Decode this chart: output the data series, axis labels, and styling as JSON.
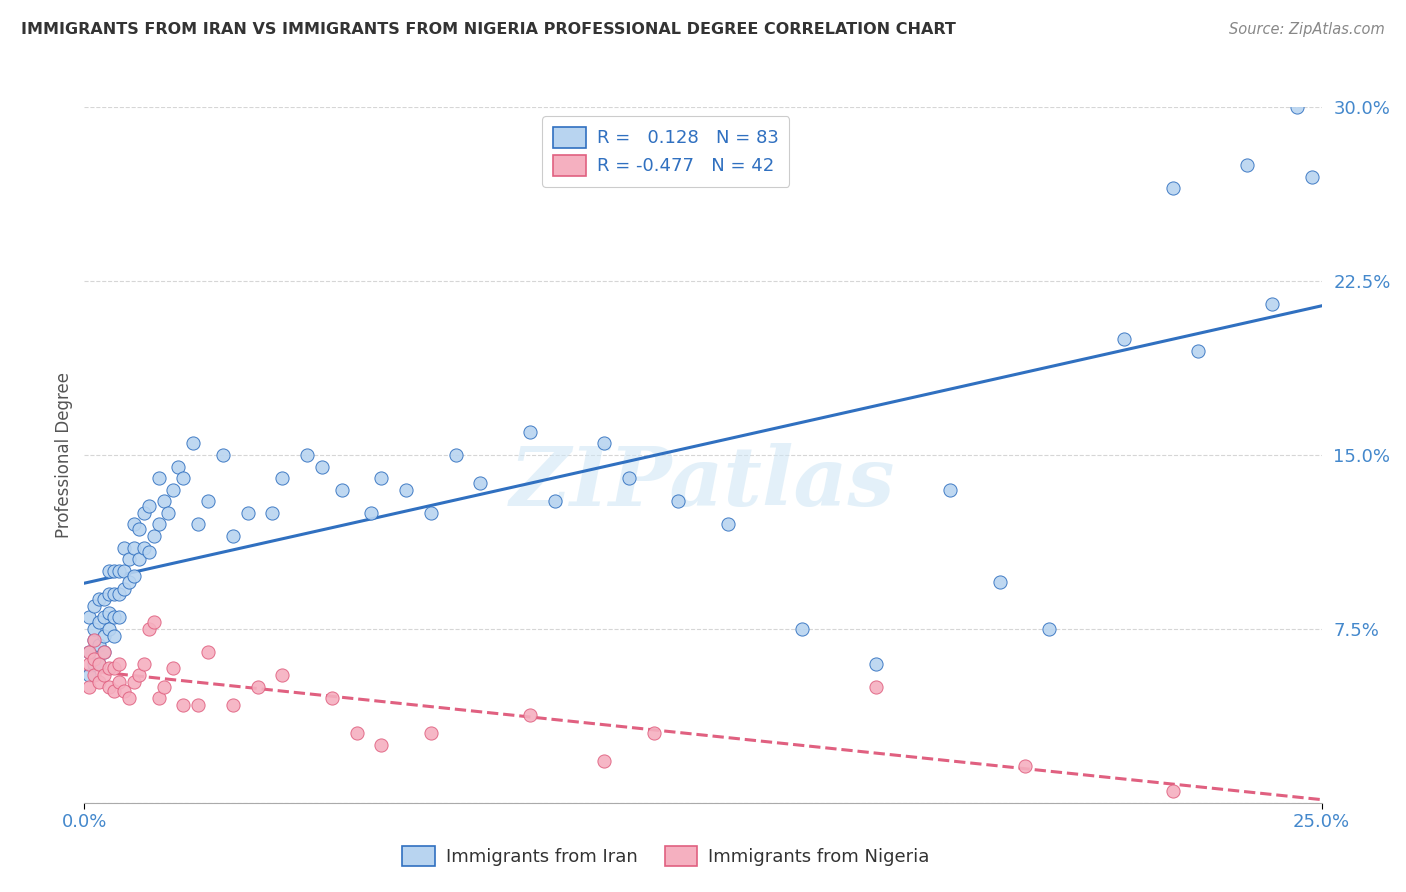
{
  "title": "IMMIGRANTS FROM IRAN VS IMMIGRANTS FROM NIGERIA PROFESSIONAL DEGREE CORRELATION CHART",
  "source": "Source: ZipAtlas.com",
  "xlabel_iran": "Immigrants from Iran",
  "xlabel_nigeria": "Immigrants from Nigeria",
  "ylabel": "Professional Degree",
  "iran_R": 0.128,
  "iran_N": 83,
  "nigeria_R": -0.477,
  "nigeria_N": 42,
  "xmin": 0.0,
  "xmax": 0.25,
  "ymin": 0.0,
  "ymax": 0.3,
  "yticks": [
    0.0,
    0.075,
    0.15,
    0.225,
    0.3
  ],
  "ytick_labels": [
    "",
    "7.5%",
    "15.0%",
    "22.5%",
    "30.0%"
  ],
  "xtick_labels": [
    "0.0%",
    "25.0%"
  ],
  "iran_color": "#b8d4f0",
  "nigeria_color": "#f5b0c0",
  "iran_line_color": "#3070c0",
  "nigeria_line_color": "#e06080",
  "iran_x": [
    0.001,
    0.001,
    0.001,
    0.002,
    0.002,
    0.002,
    0.002,
    0.003,
    0.003,
    0.003,
    0.003,
    0.004,
    0.004,
    0.004,
    0.004,
    0.005,
    0.005,
    0.005,
    0.005,
    0.006,
    0.006,
    0.006,
    0.006,
    0.007,
    0.007,
    0.007,
    0.008,
    0.008,
    0.008,
    0.009,
    0.009,
    0.01,
    0.01,
    0.01,
    0.011,
    0.011,
    0.012,
    0.012,
    0.013,
    0.013,
    0.014,
    0.015,
    0.015,
    0.016,
    0.017,
    0.018,
    0.019,
    0.02,
    0.022,
    0.023,
    0.025,
    0.028,
    0.03,
    0.033,
    0.038,
    0.04,
    0.045,
    0.048,
    0.052,
    0.058,
    0.06,
    0.065,
    0.07,
    0.075,
    0.08,
    0.09,
    0.095,
    0.105,
    0.11,
    0.12,
    0.13,
    0.145,
    0.16,
    0.175,
    0.185,
    0.195,
    0.21,
    0.22,
    0.225,
    0.235,
    0.24,
    0.245,
    0.248
  ],
  "iran_y": [
    0.055,
    0.065,
    0.08,
    0.06,
    0.07,
    0.075,
    0.085,
    0.06,
    0.068,
    0.078,
    0.088,
    0.065,
    0.072,
    0.08,
    0.088,
    0.075,
    0.082,
    0.09,
    0.1,
    0.072,
    0.08,
    0.09,
    0.1,
    0.08,
    0.09,
    0.1,
    0.11,
    0.092,
    0.1,
    0.095,
    0.105,
    0.098,
    0.11,
    0.12,
    0.105,
    0.118,
    0.11,
    0.125,
    0.108,
    0.128,
    0.115,
    0.12,
    0.14,
    0.13,
    0.125,
    0.135,
    0.145,
    0.14,
    0.155,
    0.12,
    0.13,
    0.15,
    0.115,
    0.125,
    0.125,
    0.14,
    0.15,
    0.145,
    0.135,
    0.125,
    0.14,
    0.135,
    0.125,
    0.15,
    0.138,
    0.16,
    0.13,
    0.155,
    0.14,
    0.13,
    0.12,
    0.075,
    0.06,
    0.135,
    0.095,
    0.075,
    0.2,
    0.265,
    0.195,
    0.275,
    0.215,
    0.3,
    0.27
  ],
  "nigeria_x": [
    0.001,
    0.001,
    0.001,
    0.002,
    0.002,
    0.002,
    0.003,
    0.003,
    0.004,
    0.004,
    0.005,
    0.005,
    0.006,
    0.006,
    0.007,
    0.007,
    0.008,
    0.009,
    0.01,
    0.011,
    0.012,
    0.013,
    0.014,
    0.015,
    0.016,
    0.018,
    0.02,
    0.023,
    0.025,
    0.03,
    0.035,
    0.04,
    0.05,
    0.055,
    0.06,
    0.07,
    0.09,
    0.105,
    0.115,
    0.16,
    0.19,
    0.22
  ],
  "nigeria_y": [
    0.05,
    0.06,
    0.065,
    0.055,
    0.062,
    0.07,
    0.052,
    0.06,
    0.055,
    0.065,
    0.05,
    0.058,
    0.048,
    0.058,
    0.052,
    0.06,
    0.048,
    0.045,
    0.052,
    0.055,
    0.06,
    0.075,
    0.078,
    0.045,
    0.05,
    0.058,
    0.042,
    0.042,
    0.065,
    0.042,
    0.05,
    0.055,
    0.045,
    0.03,
    0.025,
    0.03,
    0.038,
    0.018,
    0.03,
    0.05,
    0.016,
    0.005
  ],
  "watermark": "ZIPatlas",
  "background_color": "#ffffff",
  "grid_color": "#cccccc"
}
